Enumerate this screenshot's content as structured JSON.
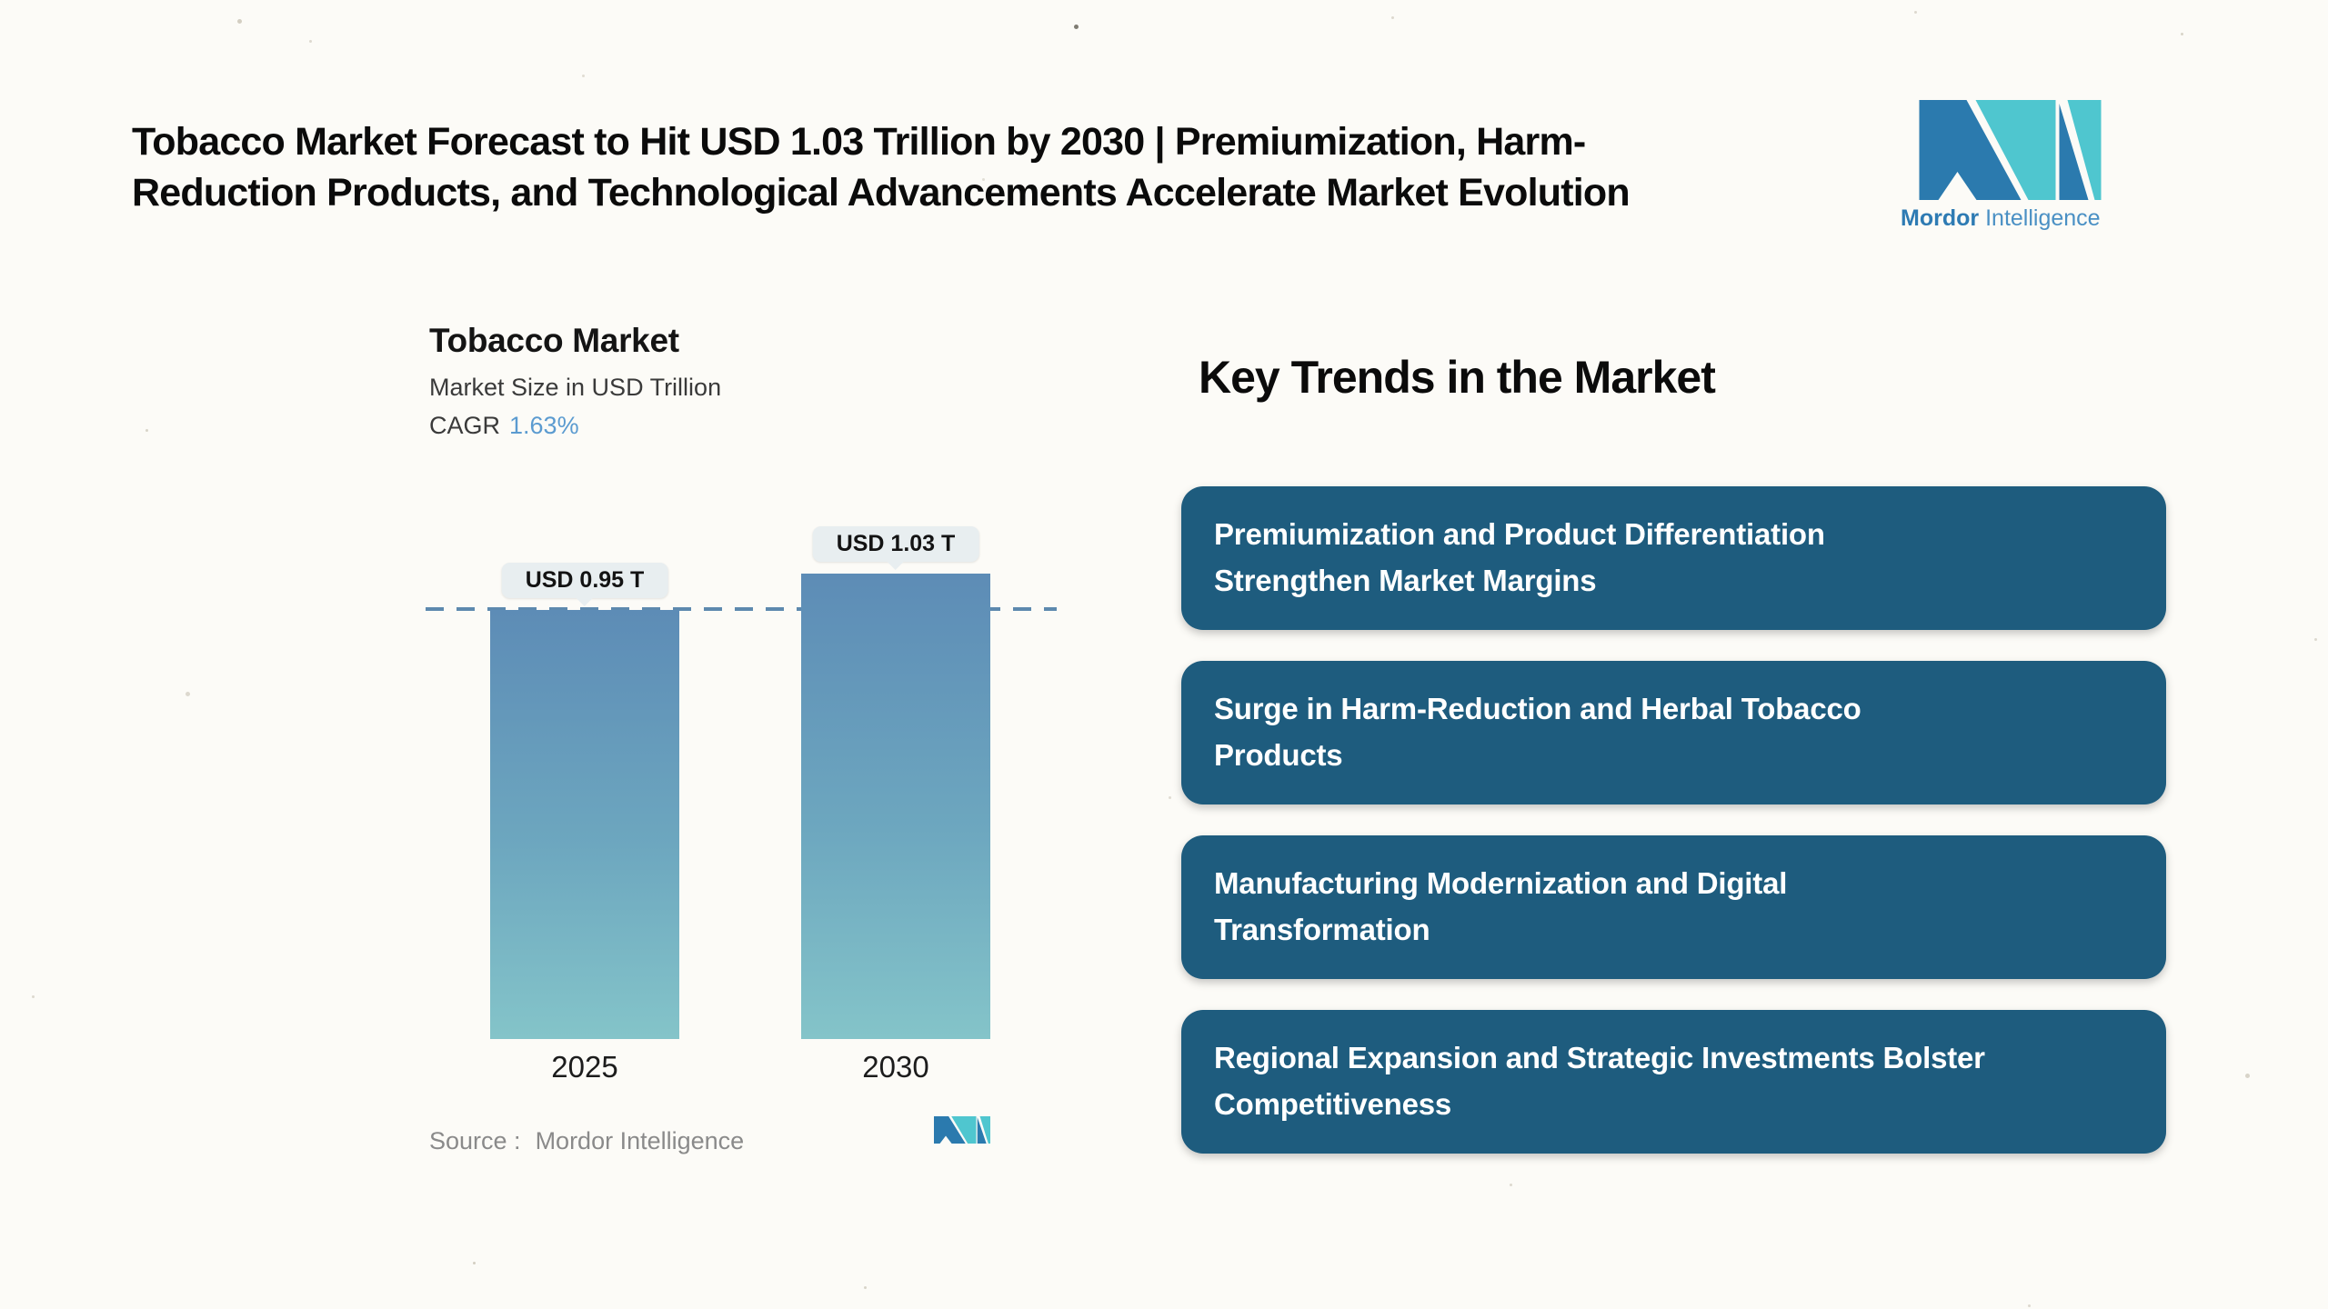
{
  "header": {
    "title_line1": "Tobacco Market Forecast to Hit USD 1.03 Trillion by 2030 | Premiumization, Harm-",
    "title_line2": "Reduction Products, and Technological Advancements Accelerate Market Evolution"
  },
  "logo": {
    "name_bold": "Mordor",
    "name_regular": "Intelligence",
    "blue": "#2b7aae",
    "teal": "#4fc6cf"
  },
  "chart": {
    "title": "Tobacco Market",
    "subtitle": "Market Size in USD Trillion",
    "cagr_label": "CAGR",
    "cagr_value": "1.63%",
    "source_label": "Source :",
    "source_value": "Mordor Intelligence"
  },
  "chart_data": {
    "type": "bar",
    "title": "Tobacco Market",
    "subtitle": "Market Size in USD Trillion",
    "cagr": "1.63%",
    "unit": "USD Trillion",
    "categories": [
      "2025",
      "2030"
    ],
    "values": [
      0.95,
      1.03
    ],
    "value_labels": [
      "USD 0.95 T",
      "USD 1.03 T"
    ],
    "ylim": [
      0,
      1.15
    ],
    "reference_line": 0.95,
    "grid": "off",
    "legend": "none",
    "bar_gradient_top": "#5d8cb6",
    "bar_gradient_bottom": "#84c4c9",
    "dashed_line_color": "#5d89ae",
    "source": "Mordor Intelligence"
  },
  "trends": {
    "heading": "Key Trends in the Market",
    "box_color": "#1e5c7e",
    "items": [
      [
        "Premiumization and Product Differentiation",
        "Strengthen Market Margins"
      ],
      [
        "Surge in Harm-Reduction and Herbal Tobacco",
        "Products"
      ],
      [
        "Manufacturing Modernization and Digital",
        "Transformation"
      ],
      [
        "Regional Expansion and Strategic Investments Bolster",
        "Competitiveness"
      ]
    ]
  }
}
